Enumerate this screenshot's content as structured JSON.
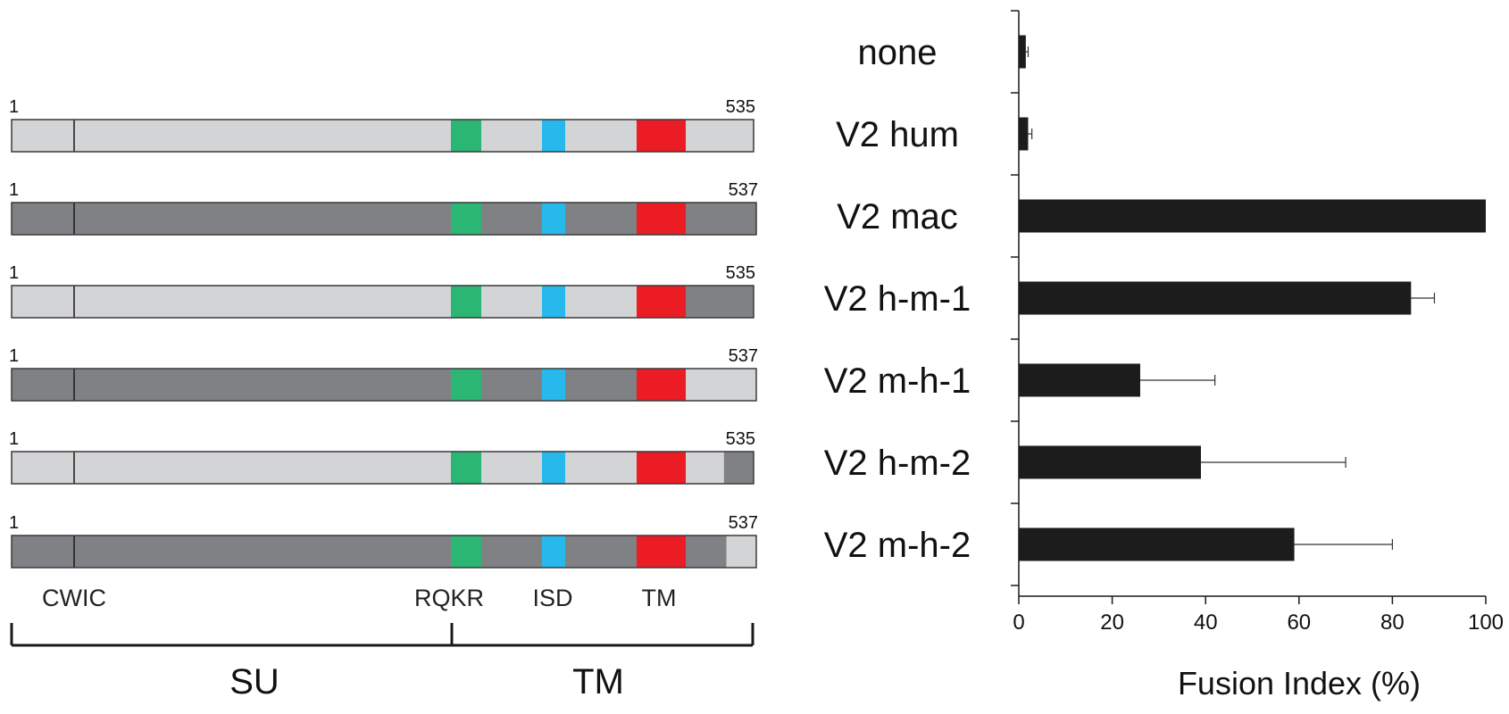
{
  "colors": {
    "human": "#d3d4d6",
    "macaque": "#808184",
    "rqkr": "#2bb673",
    "isd": "#28b9ec",
    "tm": "#ec1c24",
    "bar": "#1c1c1c",
    "outline": "#3a3a3a"
  },
  "diagram": {
    "constructs": [
      {
        "start": "1",
        "end": "535",
        "segments": [
          [
            "human",
            0,
            0.742
          ],
          [
            "human",
            0.742,
            1.0
          ]
        ]
      },
      {
        "start": "1",
        "end": "537",
        "segments": [
          [
            "macaque",
            0,
            0.742
          ],
          [
            "macaque",
            0.742,
            1.0
          ]
        ]
      },
      {
        "start": "1",
        "end": "535",
        "segments": [
          [
            "human",
            0,
            0.742
          ],
          [
            "human",
            0.742,
            0.845
          ],
          [
            "macaque",
            0.845,
            1.0
          ]
        ]
      },
      {
        "start": "1",
        "end": "537",
        "segments": [
          [
            "macaque",
            0,
            0.742
          ],
          [
            "macaque",
            0.742,
            0.845
          ],
          [
            "human",
            0.845,
            1.0
          ]
        ]
      },
      {
        "start": "1",
        "end": "535",
        "segments": [
          [
            "human",
            0,
            0.742
          ],
          [
            "human",
            0.742,
            0.96
          ],
          [
            "macaque",
            0.96,
            1.0
          ]
        ]
      },
      {
        "start": "1",
        "end": "537",
        "segments": [
          [
            "macaque",
            0,
            0.742
          ],
          [
            "macaque",
            0.742,
            0.96
          ],
          [
            "human",
            0.96,
            1.0
          ]
        ]
      }
    ],
    "domains": {
      "CWIC": "CWIC",
      "RQKR": "RQKR",
      "ISD": "ISD",
      "TM": "TM"
    },
    "subunits": {
      "SU": "SU",
      "TM": "TM"
    }
  },
  "chart_data": {
    "type": "bar",
    "orientation": "horizontal",
    "categories": [
      "none",
      "V2 hum",
      "V2 mac",
      "V2 h-m-1",
      "V2 m-h-1",
      "V2 h-m-2",
      "V2 m-h-2"
    ],
    "values": [
      1.5,
      2,
      100,
      84,
      26,
      39,
      59
    ],
    "errors": [
      0.5,
      0.8,
      0,
      5,
      16,
      31,
      21
    ],
    "xlabel": "Fusion Index (%)",
    "xlim": [
      0,
      100
    ],
    "xticks": [
      "0",
      "20",
      "40",
      "60",
      "80",
      "100"
    ],
    "grid": false
  }
}
